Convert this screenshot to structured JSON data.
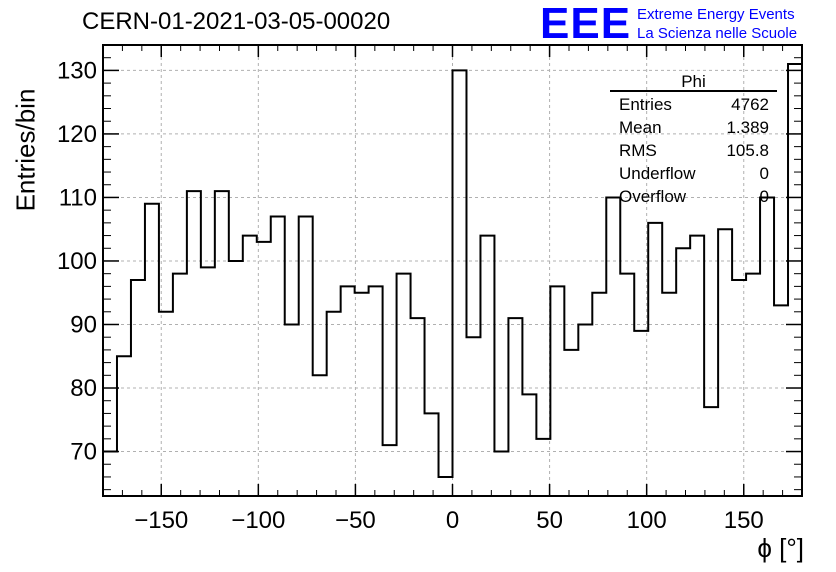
{
  "header": {
    "title": "CERN-01-2021-03-05-00020",
    "logo_text": "EEE",
    "logo_line1": "Extreme Energy Events",
    "logo_line2": "La Scienza nelle Scuole"
  },
  "stats_box": {
    "name": "Phi",
    "rows": [
      {
        "label": "Entries",
        "value": "4762"
      },
      {
        "label": "Mean",
        "value": "1.389"
      },
      {
        "label": "RMS",
        "value": "105.8"
      },
      {
        "label": "Underflow",
        "value": "0"
      },
      {
        "label": "Overflow",
        "value": "0"
      }
    ]
  },
  "chart_data": {
    "type": "histogram",
    "title": "CERN-01-2021-03-05-00020",
    "xlabel": "ϕ [°]",
    "ylabel": "Entries/bin",
    "xlim": [
      -180,
      180
    ],
    "ylim": [
      63,
      134
    ],
    "grid": true,
    "bin_edges_start": -180,
    "bin_width": 7.2,
    "values": [
      70,
      85,
      97,
      109,
      92,
      98,
      111,
      99,
      111,
      100,
      104,
      103,
      107,
      90,
      107,
      82,
      92,
      96,
      95,
      96,
      71,
      98,
      91,
      76,
      66,
      130,
      88,
      104,
      70,
      91,
      79,
      72,
      96,
      86,
      90,
      95,
      110,
      98,
      89,
      106,
      95,
      102,
      104,
      77,
      105,
      97,
      98,
      110,
      93,
      131
    ],
    "xticks": [
      -150,
      -100,
      -50,
      0,
      50,
      100,
      150
    ],
    "xtick_labels": [
      "−150",
      "−100",
      "−50",
      "0",
      "50",
      "100",
      "150"
    ],
    "yticks": [
      70,
      80,
      90,
      100,
      110,
      120,
      130
    ],
    "ytick_labels": [
      "70",
      "80",
      "90",
      "100",
      "110",
      "120",
      "130"
    ]
  }
}
